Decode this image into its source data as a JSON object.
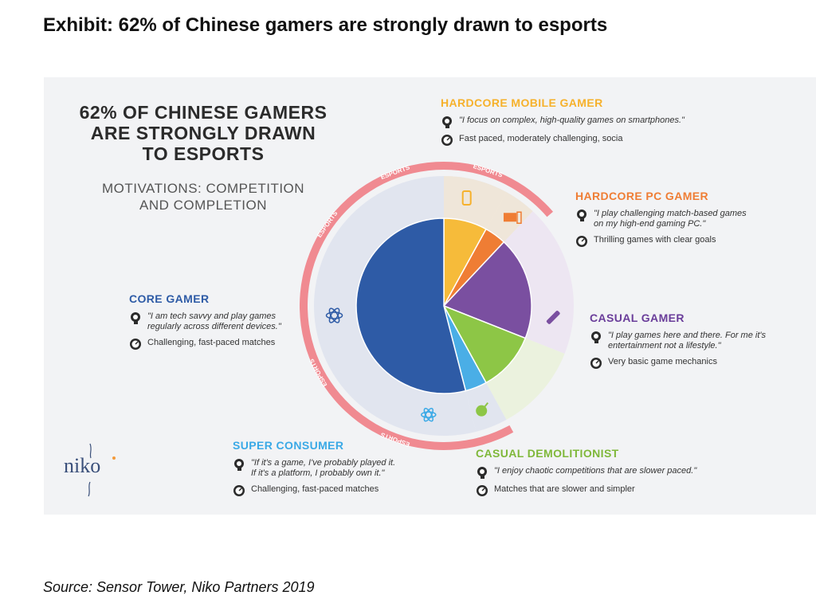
{
  "page": {
    "exhibit_title": "Exhibit: 62% of Chinese gamers are strongly drawn to esports",
    "source": "Source: Sensor Tower, Niko Partners 2019"
  },
  "infographic": {
    "heading_lines": [
      "62% OF CHINESE GAMERS",
      "ARE STRONGLY DRAWN",
      "TO ESPORTS"
    ],
    "subheading_lines": [
      "MOTIVATIONS: COMPETITION",
      "AND COMPLETION"
    ],
    "ring_label": "ESPORTS",
    "logo_text": "niko",
    "colors": {
      "core": "#2e5ba6",
      "super": "#4aaee6",
      "demolitionist": "#8dc646",
      "casual": "#7a4fa0",
      "pc": "#ef7d34",
      "mobile": "#f6bb3a",
      "ring": "#f08a91",
      "esports_zone": "#dfe3ee",
      "right_zone": "#ece4f2",
      "panel": "#f2f3f5"
    },
    "segments": {
      "mobile": {
        "title": "HARDCORE MOBILE GAMER",
        "title_color": "#f6b12b",
        "quote": "\"I focus on complex, high-quality games on smartphones.\"",
        "trait": "Fast paced, moderately challenging, socia"
      },
      "pc": {
        "title": "HARDCORE PC GAMER",
        "title_color": "#ef7d34",
        "quote_lines": [
          "\"I play challenging match-based games",
          "on my high-end gaming PC.\""
        ],
        "trait": "Thrilling games with clear goals"
      },
      "casual": {
        "title": "CASUAL GAMER",
        "title_color": "#6a3d9a",
        "quote_lines": [
          "\"I play games here and there. For me it's",
          "entertainment not a lifestyle.\""
        ],
        "trait": "Very basic game mechanics"
      },
      "demolitionist": {
        "title": "CASUAL DEMOLITIONIST",
        "title_color": "#7fb83a",
        "quote": "\"I enjoy chaotic competitions that are slower paced.\"",
        "trait": "Matches that are slower and simpler"
      },
      "super": {
        "title": "SUPER CONSUMER",
        "title_color": "#3aa9e6",
        "quote_lines": [
          "\"If it's a game, I've probably played it.",
          "If it's a platform, I probably own it.\""
        ],
        "trait": "Challenging, fast-paced matches"
      },
      "core": {
        "title": "CORE GAMER",
        "title_color": "#2e5ba6",
        "quote_lines": [
          "\"I am tech savvy and play games",
          "regularly across different devices.\""
        ],
        "trait": "Challenging, fast-paced matches"
      }
    }
  },
  "chart_data": {
    "type": "pie",
    "title": "62% OF CHINESE GAMERS ARE STRONGLY DRAWN TO ESPORTS",
    "categories": [
      "HARDCORE MOBILE GAMER",
      "HARDCORE PC GAMER",
      "CASUAL GAMER",
      "CASUAL DEMOLITIONIST",
      "SUPER CONSUMER",
      "CORE GAMER"
    ],
    "values": [
      8,
      4,
      19,
      11,
      4,
      54
    ],
    "esports_share": 62,
    "colors": [
      "#f6bb3a",
      "#ef7d34",
      "#7a4fa0",
      "#8dc646",
      "#4aaee6",
      "#2e5ba6"
    ]
  }
}
